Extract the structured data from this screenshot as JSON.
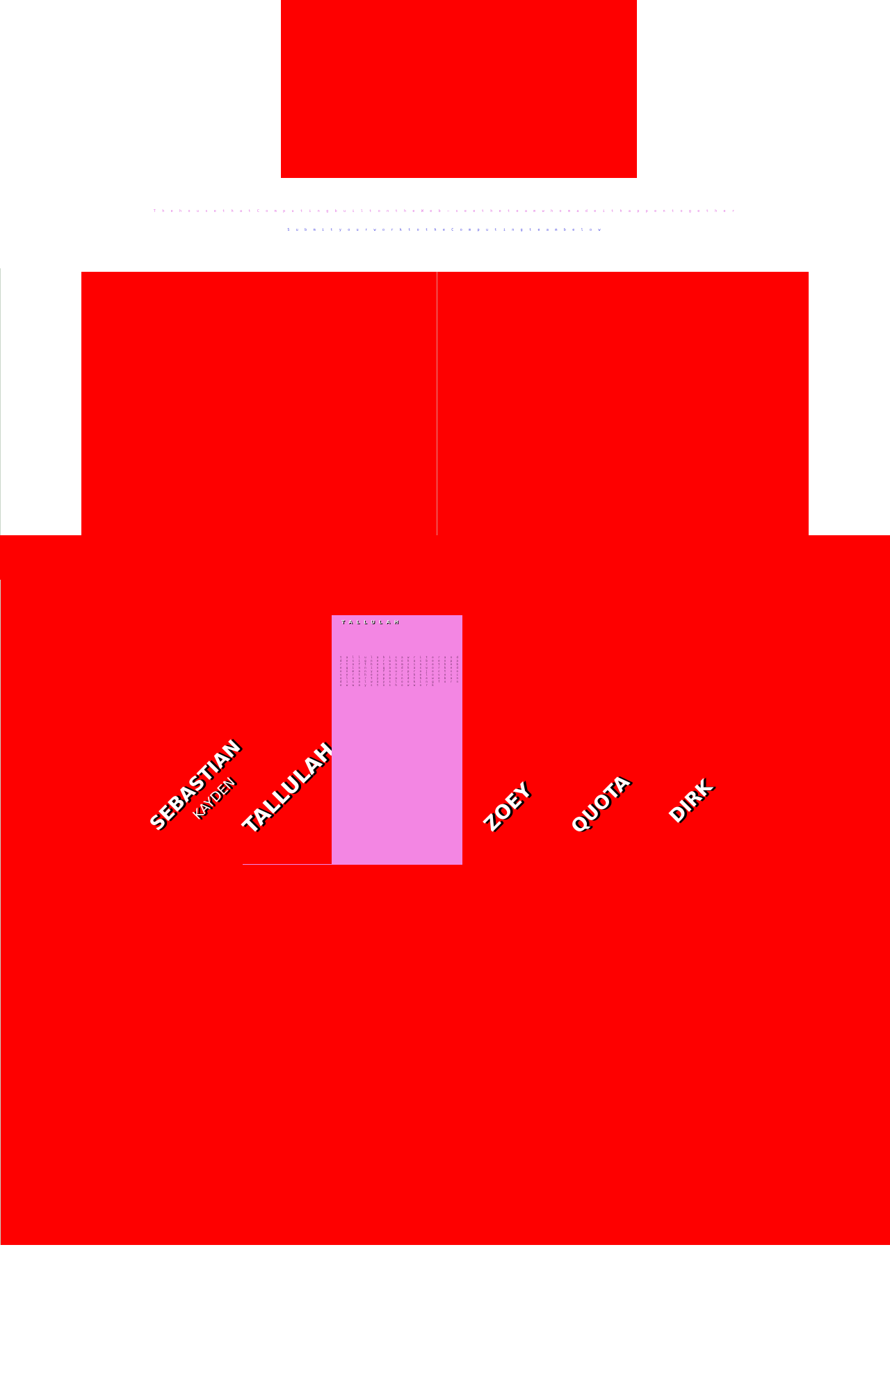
{
  "hero": {
    "color": "#fe0000"
  },
  "taglines": [
    "T h e  h o u s e  t h a t  C o m p u t i n g  b u i l t  o n  t h e  W e b  —  s e e  t h e  t e a m  w h o  m a d e  i t  h a p p e n  t o g e t h e r",
    "S u b m i t  y o u r  w o r k  t o  t h e  C o m p u t i n g  t e a m  b e l o w"
  ],
  "names": {
    "sebastian": "SEBASTIAN",
    "kayden": "KAYDEN",
    "tallulah": "TALLULAH",
    "zoey": "ZOEY",
    "quota": "QUOTA",
    "dirk": "DIRK"
  },
  "profile_card": {
    "title": "TALLULAH",
    "body": "t a l l u l a h  i s  a  w r i t e r  a n d  d e s i g n e r  w h o  h a s  b e e n  p a r t  o f  t h e  t e a m  s i n c e  t h e  b e g i n n i n g  a n d  h a s  w o r k e d  o n  m a n y  o f  o u r  p r o j e c t s  o v e r  t h e  y e a r s  s h e  l o v e s  c o l o u r  t y p e  a n d  t h e  w e b  a n d  i s  a l w a y s  l o o k i n g  f o r  n e w  w a y s  t o  s h o w  w o r k",
    "color": "#f386e3"
  },
  "colors": {
    "primary_red": "#fe0000",
    "name_text": "#ffffff",
    "card_pink": "#f386e3"
  }
}
